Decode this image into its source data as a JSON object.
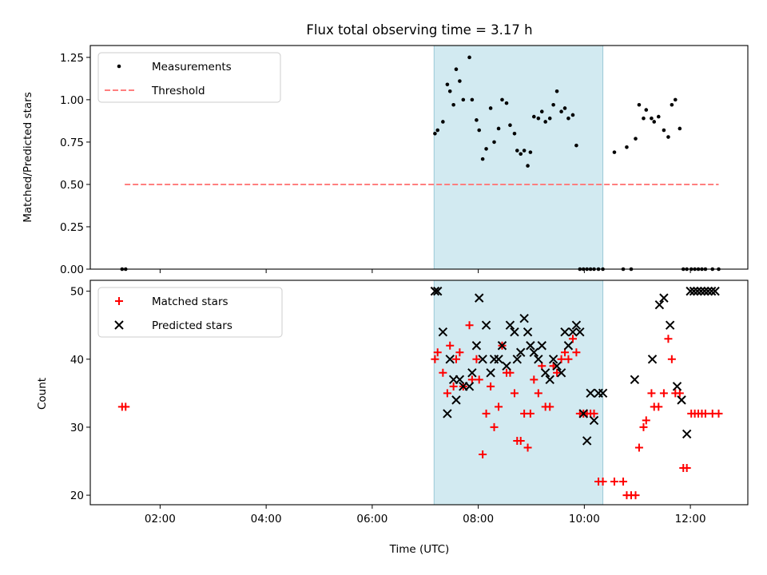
{
  "chart_data": [
    {
      "type": "scatter",
      "title": "Flux total observing time = 3.17 h",
      "ylabel": "Matched/Predicted stars",
      "xlabel": "",
      "ylim": [
        0,
        1.32
      ],
      "xlim": [
        "00:41",
        "13:05"
      ],
      "x_ticks": [
        "02:00",
        "04:00",
        "06:00",
        "08:00",
        "10:00",
        "12:00"
      ],
      "y_ticks": [
        "0.00",
        "0.25",
        "0.50",
        "0.75",
        "1.00",
        "1.25"
      ],
      "highlight_span": {
        "start": "07:10",
        "end": "10:21",
        "color": "#add8e6"
      },
      "legend": {
        "position": "upper left",
        "entries": [
          "Measurements",
          "Threshold"
        ]
      },
      "threshold": {
        "name": "Threshold",
        "value": 0.5,
        "x_start": "01:20",
        "x_end": "12:32",
        "color": "#ff7f7f"
      },
      "series": [
        {
          "name": "Measurements",
          "color": "#000000",
          "x": [
            "01:17",
            "01:21",
            "07:11",
            "07:14",
            "07:20",
            "07:25",
            "07:28",
            "07:32",
            "07:35",
            "07:39",
            "07:43",
            "07:50",
            "07:53",
            "07:58",
            "08:01",
            "08:05",
            "08:09",
            "08:14",
            "08:18",
            "08:23",
            "08:27",
            "08:32",
            "08:36",
            "08:41",
            "08:44",
            "08:48",
            "08:52",
            "08:56",
            "08:59",
            "09:03",
            "09:08",
            "09:12",
            "09:16",
            "09:21",
            "09:25",
            "09:29",
            "09:34",
            "09:38",
            "09:42",
            "09:47",
            "09:51",
            "09:55",
            "09:59",
            "10:03",
            "10:07",
            "10:11",
            "10:16",
            "10:21",
            "10:34",
            "10:44",
            "10:48",
            "10:53",
            "10:58",
            "11:02",
            "11:07",
            "11:10",
            "11:16",
            "11:19",
            "11:24",
            "11:30",
            "11:35",
            "11:39",
            "11:43",
            "11:48",
            "11:52",
            "11:56",
            "12:01",
            "12:05",
            "12:09",
            "12:13",
            "12:17",
            "12:25",
            "12:32"
          ],
          "y": [
            0,
            0,
            0.8,
            0.82,
            0.87,
            1.09,
            1.05,
            0.97,
            1.18,
            1.11,
            1.0,
            1.25,
            1.0,
            0.88,
            0.82,
            0.65,
            0.71,
            0.95,
            0.75,
            0.83,
            1.0,
            0.98,
            0.85,
            0.8,
            0.7,
            0.68,
            0.7,
            0.61,
            0.69,
            0.9,
            0.89,
            0.93,
            0.87,
            0.89,
            0.97,
            1.05,
            0.93,
            0.95,
            0.89,
            0.91,
            0.73,
            0,
            0,
            0,
            0,
            0,
            0,
            0,
            0.69,
            0,
            0.72,
            0,
            0.77,
            0.97,
            0.89,
            0.94,
            0.89,
            0.87,
            0.9,
            0.82,
            0.78,
            0.97,
            1.0,
            0.83,
            0,
            0,
            0,
            0,
            0,
            0,
            0,
            0,
            0
          ]
        }
      ]
    },
    {
      "type": "scatter",
      "title": "",
      "ylabel": "Count",
      "xlabel": "Time (UTC)",
      "ylim": [
        18.6,
        51.6
      ],
      "xlim": [
        "00:41",
        "13:05"
      ],
      "x_ticks": [
        "02:00",
        "04:00",
        "06:00",
        "08:00",
        "10:00",
        "12:00"
      ],
      "y_ticks": [
        "20",
        "30",
        "40",
        "50"
      ],
      "highlight_span": {
        "start": "07:10",
        "end": "10:21",
        "color": "#add8e6"
      },
      "legend": {
        "position": "upper left",
        "entries": [
          "Matched stars",
          "Predicted stars"
        ]
      },
      "series": [
        {
          "name": "Matched stars",
          "color": "#ff0000",
          "marker": "plus",
          "x": [
            "01:17",
            "01:21",
            "07:11",
            "07:14",
            "07:20",
            "07:25",
            "07:28",
            "07:32",
            "07:35",
            "07:39",
            "07:43",
            "07:50",
            "07:53",
            "07:58",
            "08:01",
            "08:05",
            "08:09",
            "08:14",
            "08:18",
            "08:23",
            "08:27",
            "08:32",
            "08:36",
            "08:41",
            "08:44",
            "08:48",
            "08:52",
            "08:56",
            "08:59",
            "09:03",
            "09:08",
            "09:12",
            "09:16",
            "09:21",
            "09:25",
            "09:29",
            "09:34",
            "09:38",
            "09:42",
            "09:47",
            "09:51",
            "09:55",
            "09:59",
            "10:03",
            "10:07",
            "10:11",
            "10:16",
            "10:21",
            "10:34",
            "10:44",
            "10:48",
            "10:53",
            "10:58",
            "11:02",
            "11:07",
            "11:10",
            "11:16",
            "11:19",
            "11:24",
            "11:30",
            "11:35",
            "11:39",
            "11:43",
            "11:48",
            "11:52",
            "11:56",
            "12:01",
            "12:05",
            "12:09",
            "12:13",
            "12:17",
            "12:25",
            "12:32"
          ],
          "y": [
            33,
            33,
            40,
            41,
            38,
            35,
            42,
            36,
            40,
            41,
            36,
            45,
            37,
            40,
            37,
            26,
            32,
            36,
            30,
            33,
            42,
            38,
            38,
            35,
            28,
            28,
            32,
            27,
            32,
            37,
            35,
            39,
            33,
            33,
            39,
            38,
            40,
            41,
            40,
            43,
            41,
            32,
            32,
            32,
            32,
            32,
            22,
            22,
            22,
            22,
            20,
            20,
            20,
            27,
            30,
            31,
            35,
            33,
            33,
            35,
            43,
            40,
            35,
            35,
            24,
            24,
            32,
            32,
            32,
            32,
            32,
            32,
            32
          ]
        },
        {
          "name": "Predicted stars",
          "color": "#000000",
          "marker": "x",
          "x": [
            "07:11",
            "07:14",
            "07:20",
            "07:25",
            "07:28",
            "07:32",
            "07:35",
            "07:39",
            "07:43",
            "07:50",
            "07:53",
            "07:58",
            "08:01",
            "08:05",
            "08:09",
            "08:14",
            "08:18",
            "08:23",
            "08:27",
            "08:32",
            "08:36",
            "08:41",
            "08:44",
            "08:48",
            "08:52",
            "08:56",
            "08:59",
            "09:03",
            "09:08",
            "09:12",
            "09:16",
            "09:21",
            "09:25",
            "09:29",
            "09:34",
            "09:38",
            "09:42",
            "09:47",
            "09:51",
            "09:55",
            "09:59",
            "10:03",
            "10:07",
            "10:11",
            "10:16",
            "10:21",
            "10:57",
            "11:17",
            "11:25",
            "11:30",
            "11:37",
            "11:45",
            "11:50",
            "11:56",
            "12:00",
            "12:04",
            "12:08",
            "12:12",
            "12:16",
            "12:20",
            "12:24",
            "12:28"
          ],
          "y": [
            50,
            50,
            44,
            32,
            40,
            37,
            34,
            37,
            36,
            36,
            38,
            42,
            49,
            40,
            45,
            38,
            40,
            40,
            42,
            39,
            45,
            44,
            40,
            41,
            46,
            44,
            42,
            41,
            40,
            42,
            38,
            37,
            40,
            39,
            38,
            44,
            42,
            44,
            45,
            44,
            32,
            28,
            35,
            31,
            35,
            35,
            37,
            40,
            48,
            49,
            45,
            36,
            34,
            29,
            50,
            50,
            50,
            50,
            50,
            50,
            50,
            50
          ]
        }
      ]
    }
  ]
}
